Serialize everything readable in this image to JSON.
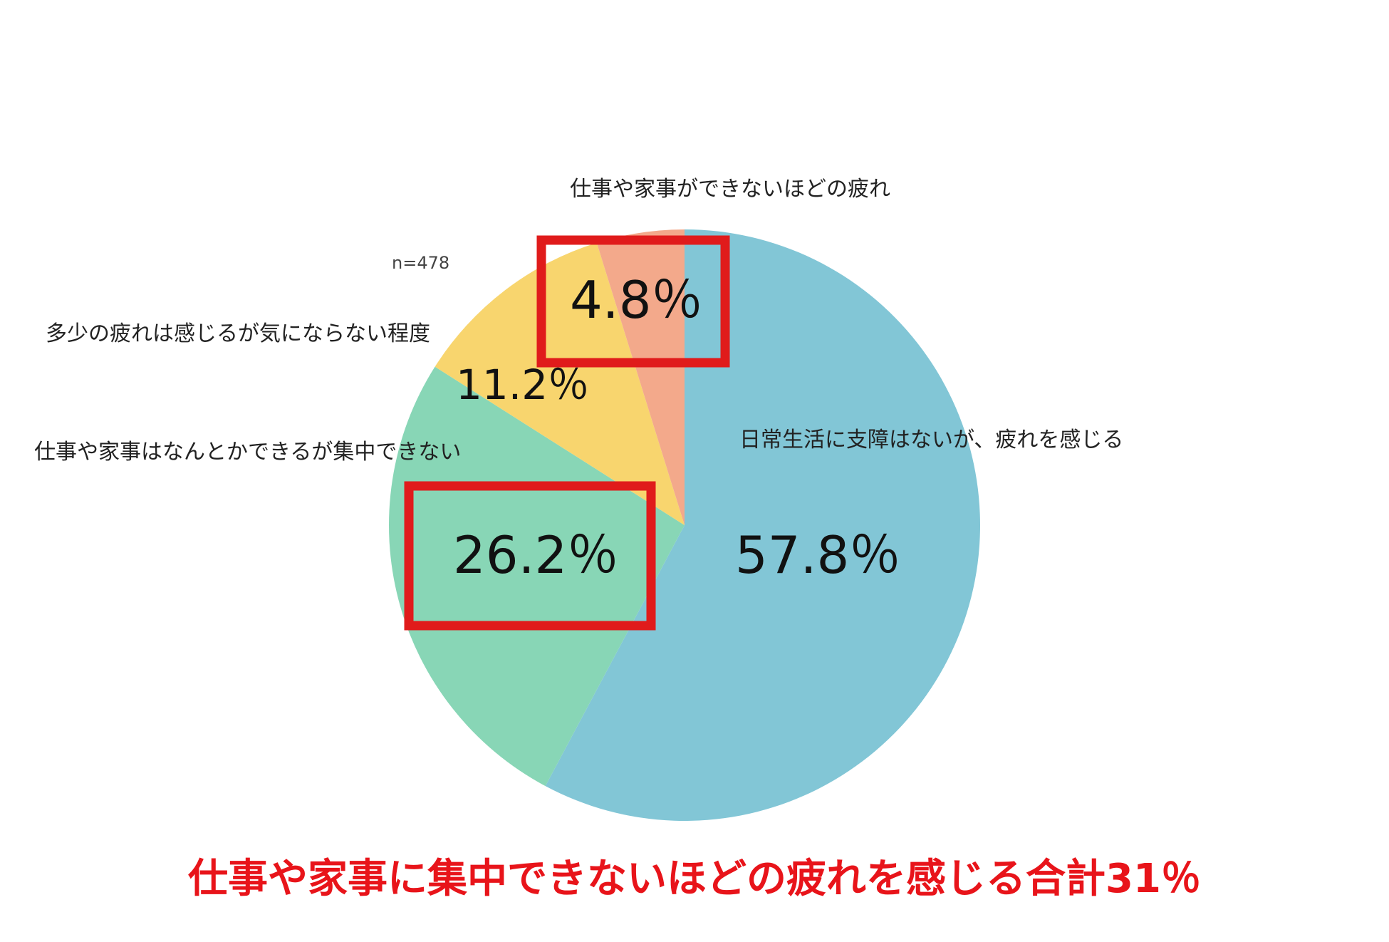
{
  "colors": {
    "slice_blue": "#82c6d6",
    "slice_green": "#88d6b6",
    "slice_yellow": "#f8d56e",
    "slice_salmon": "#f3a98b",
    "highlight_box": "#e01b1b",
    "caption_red": "#e8141a"
  },
  "chart_data": {
    "type": "pie",
    "sample_size_label": "n=478",
    "slices": [
      {
        "name": "日常生活に支障はないが、疲れを感じる",
        "value": 57.8,
        "label": "57.8％",
        "color": "#82c6d6",
        "highlighted": false
      },
      {
        "name": "仕事や家事はなんとかできるが集中できない",
        "value": 26.2,
        "label": "26.2％",
        "color": "#88d6b6",
        "highlighted": true
      },
      {
        "name": "多少の疲れは感じるが気にならない程度",
        "value": 11.2,
        "label": "11.2％",
        "color": "#f8d56e",
        "highlighted": false
      },
      {
        "name": "仕事や家事ができないほどの疲れ",
        "value": 4.8,
        "label": "4.8％",
        "color": "#f3a98b",
        "highlighted": true
      }
    ]
  },
  "caption": "仕事や家事に集中できないほどの疲れを感じる合計31％"
}
